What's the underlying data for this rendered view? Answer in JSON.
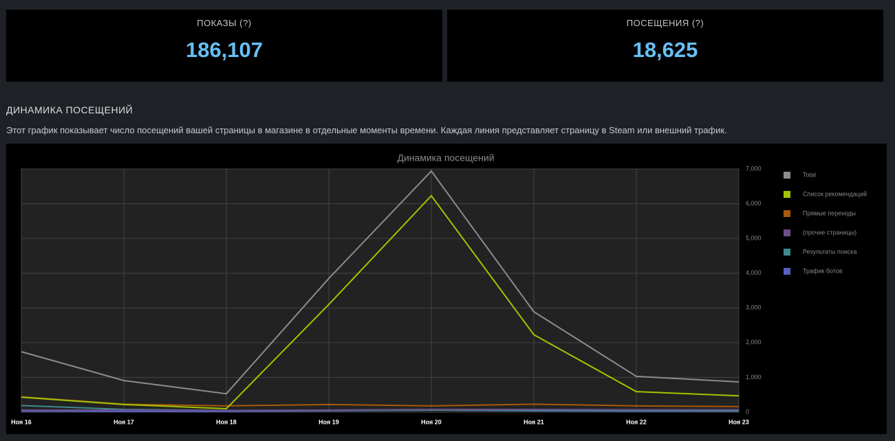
{
  "stats": [
    {
      "label": "ПОКАЗЫ (?)",
      "value": "186,107"
    },
    {
      "label": "ПОСЕЩЕНИЯ (?)",
      "value": "18,625"
    }
  ],
  "section": {
    "title": "ДИНАМИКА ПОСЕЩЕНИЙ",
    "description": "Этот график показывает число посещений вашей страницы в магазине в отдельные моменты времени. Каждая линия представляет страницу в Steam или внешний трафик."
  },
  "chart_data": {
    "type": "line",
    "title": "Динамика посещений",
    "categories": [
      "Ноя 16",
      "Ноя 17",
      "Ноя 18",
      "Ноя 19",
      "Ноя 20",
      "Ноя 21",
      "Ноя 22",
      "Ноя 23"
    ],
    "series": [
      {
        "name": "Total",
        "color": "#8c8c8c",
        "values": [
          1740,
          910,
          530,
          3850,
          6940,
          2890,
          1030,
          870
        ]
      },
      {
        "name": "Список рекомендаций",
        "color": "#a4c400",
        "values": [
          430,
          220,
          100,
          3100,
          6230,
          2230,
          590,
          470
        ]
      },
      {
        "name": "Прямые переходы",
        "color": "#a8580c",
        "values": [
          440,
          230,
          180,
          220,
          180,
          230,
          180,
          160
        ]
      },
      {
        "name": "(прочие страницы)",
        "color": "#6b4f8a",
        "values": [
          60,
          60,
          50,
          60,
          80,
          80,
          70,
          70
        ]
      },
      {
        "name": "Результаты поиска",
        "color": "#3f8a8f",
        "values": [
          190,
          80,
          50,
          50,
          60,
          50,
          50,
          40
        ]
      },
      {
        "name": "Трафик ботов",
        "color": "#5560c0",
        "values": [
          30,
          20,
          20,
          40,
          60,
          40,
          30,
          30
        ]
      }
    ],
    "ylim": [
      0,
      7000
    ],
    "yticks": [
      0,
      {
        "value": 1000,
        "label": "1,000"
      },
      {
        "value": 2000,
        "label": "2,000"
      },
      {
        "value": 3000,
        "label": "3,000"
      },
      {
        "value": 4000,
        "label": "4,000"
      },
      {
        "value": 5000,
        "label": "5,000"
      },
      {
        "value": 6000,
        "label": "6,000"
      },
      {
        "value": 7000,
        "label": "7,000"
      }
    ],
    "grid": true,
    "legend": "right"
  }
}
